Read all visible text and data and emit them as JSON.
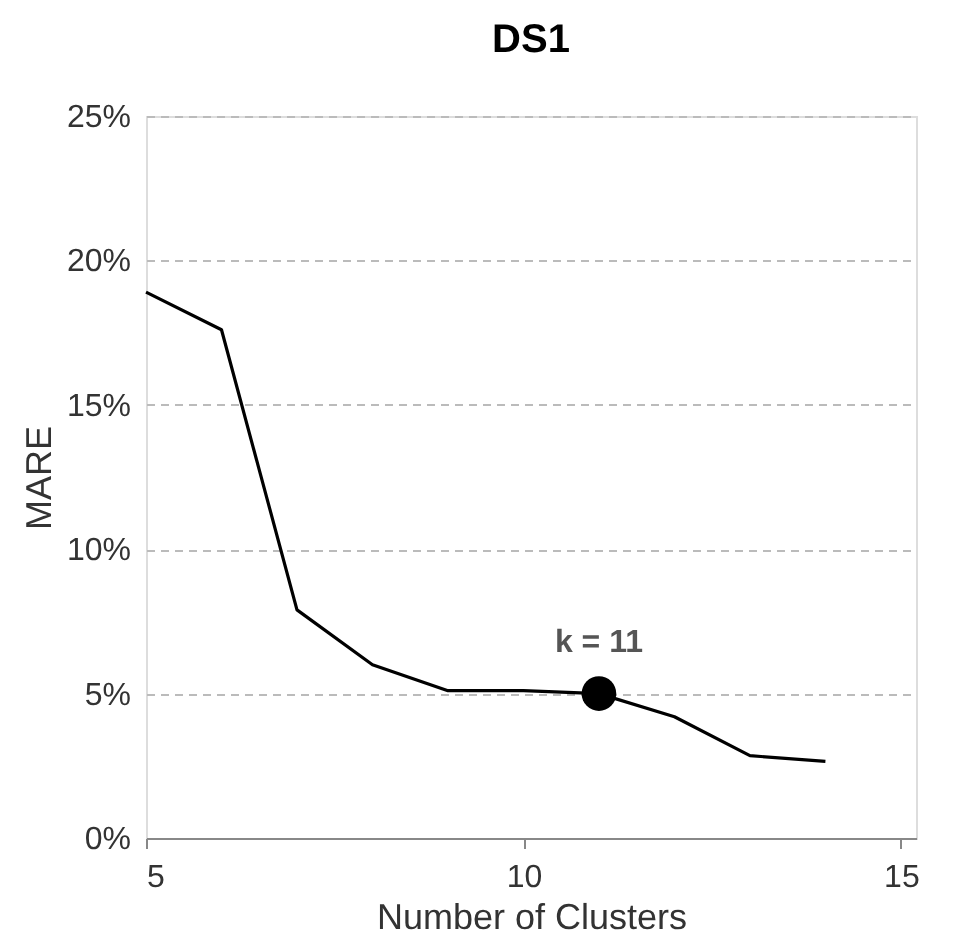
{
  "chart_data": {
    "type": "line",
    "title": "DS1",
    "xlabel": "Number of Clusters",
    "ylabel": "MARE",
    "x": [
      5,
      6,
      7,
      8,
      9,
      10,
      11,
      12,
      13,
      14
    ],
    "series": [
      {
        "color": "#000000",
        "values": [
          18.9,
          17.6,
          7.9,
          6.0,
          5.1,
          5.1,
          5.0,
          4.2,
          2.85,
          2.65
        ]
      },
      {
        "type": "scatter",
        "marker": "circle",
        "color": "#000000",
        "x": [
          11
        ],
        "values": [
          5.0
        ]
      }
    ],
    "annotations": [
      {
        "text": "k = 11",
        "x": 11,
        "y": 5.0
      }
    ],
    "xlim": [
      5,
      15.2
    ],
    "xticks": [
      5,
      10,
      15
    ],
    "ylim": [
      0,
      25
    ],
    "yticks": [
      {
        "value": 0,
        "label": "0%"
      },
      {
        "value": 5,
        "label": "5%"
      },
      {
        "value": 10,
        "label": "10%"
      },
      {
        "value": 15,
        "label": "15%"
      },
      {
        "value": 20,
        "label": "20%"
      },
      {
        "value": 25,
        "label": "25%"
      }
    ],
    "grid": "y",
    "marker": "none",
    "line_style": "solid"
  }
}
